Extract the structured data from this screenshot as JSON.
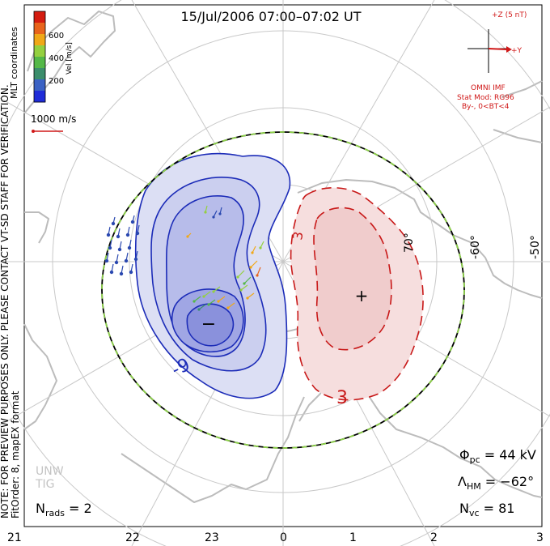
{
  "title": "15/Jul/2006 07:00–07:02 UT",
  "colorbar": {
    "ticks": [
      "600",
      "400",
      "200"
    ],
    "unit": "Vel [m/s]",
    "coords": "MLT coordinates",
    "colors": [
      "#d41c10",
      "#e8641c",
      "#f0a818",
      "#94d040",
      "#54b848",
      "#3c8e6c",
      "#3b62c4",
      "#1f2cd8"
    ]
  },
  "ref_vector": "1000 m/s",
  "imf": {
    "z_label": "+Z (5 nT)",
    "y_label": "+Y",
    "source": "OMNI IMF",
    "stat_mod": "Stat Mod: RG96",
    "condition": "By-, 0<BT<4"
  },
  "left_note_1": "NOTE: FOR PREVIEW PURPOSES ONLY. PLEASE CONTACT VT-SD STAFF FOR VERIFICATION.",
  "left_note_2": "FitOrder: 8, mapEX format",
  "logo_text": [
    "UNW",
    "TIG"
  ],
  "lat_labels": [
    "70°",
    "-60°",
    "-50°"
  ],
  "contour_labels": {
    "neg": "-9",
    "pos": "3",
    "pos_small": "3"
  },
  "markers": {
    "min": "−",
    "max": "+"
  },
  "stats": {
    "phi_symbol": "Φ",
    "phi_sub": "pc",
    "phi_value": " = 44 kV",
    "lambda_symbol": "Λ",
    "lambda_sub": "HM",
    "lambda_value": " = −62°",
    "nvc_symbol": "N",
    "nvc_sub": "vc",
    "nvc_value": " = 81",
    "nrads_symbol": "N",
    "nrads_sub": "rads",
    "nrads_value": " = 2"
  },
  "mlt_labels": [
    "21",
    "22",
    "23",
    "0",
    "1",
    "2",
    "3"
  ],
  "colors": {
    "negative_contour": "#1c2cb8",
    "positive_contour": "#c81818",
    "negative_fill": "#c8ccee",
    "positive_fill": "#f4dada",
    "hm_boundary": "#8cd048",
    "land": "#bcbcbc"
  }
}
